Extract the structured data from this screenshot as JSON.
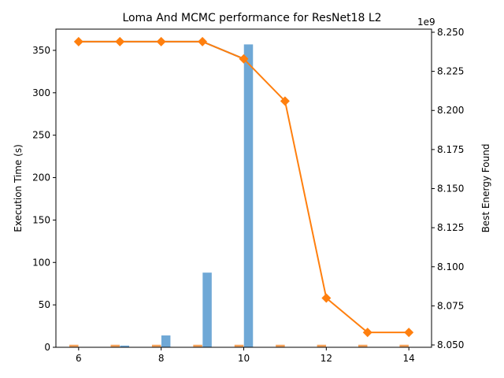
{
  "chart_data": {
    "type": "bar",
    "title": "Loma And MCMC performance for ResNet18 L2",
    "xlabel": "",
    "ylabel_left": "Execution Time (s)",
    "ylabel_right": "Best Energy Found",
    "right_axis_offset_label": "1e9",
    "xlim": [
      5.45,
      14.55
    ],
    "ylim_left": [
      0,
      375
    ],
    "ylim_right": [
      8048500000,
      8252000000
    ],
    "x_ticks": [
      6,
      8,
      10,
      12,
      14
    ],
    "y_left_ticks": [
      0,
      50,
      100,
      150,
      200,
      250,
      300,
      350
    ],
    "y_right_ticks": [
      8.05,
      8.075,
      8.1,
      8.125,
      8.15,
      8.175,
      8.2,
      8.225,
      8.25
    ],
    "x": [
      6,
      7,
      8,
      9,
      10,
      11,
      12,
      13,
      14
    ],
    "series": [
      {
        "kind": "bar",
        "axis": "left",
        "color": "#f5a35c",
        "values": [
          3,
          3,
          3,
          3,
          3,
          3,
          3,
          3,
          3
        ]
      },
      {
        "kind": "bar",
        "axis": "left",
        "color": "#6fa8d6",
        "values": [
          0,
          2,
          14,
          88,
          357,
          0,
          0,
          0,
          0
        ]
      },
      {
        "kind": "line",
        "axis": "right",
        "color": "#ff7f0e",
        "marker": "diamond",
        "values": [
          8244000000,
          8244000000,
          8244000000,
          8244000000,
          8233000000,
          8206000000,
          8080000000,
          8058000000,
          8058000000
        ]
      },
      {
        "kind": "line",
        "axis": "right",
        "color": "#3a6f96",
        "marker": "dot",
        "x": [
          6,
          7,
          8,
          9,
          10
        ],
        "values": [
          8244000000,
          8244000000,
          8244000000,
          8244000000,
          8233000000
        ]
      }
    ]
  }
}
